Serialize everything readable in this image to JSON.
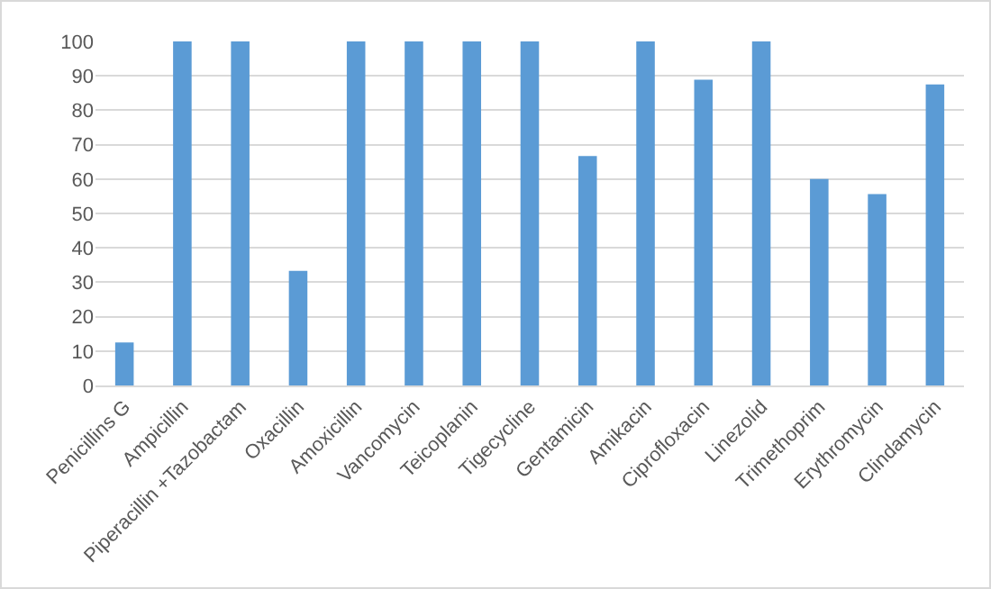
{
  "chart_data": {
    "type": "bar",
    "categories": [
      "Penicillins G",
      "Ampicillin",
      "Piperacillin +Tazobactam",
      "Oxacillin",
      "Amoxicillin",
      "Vancomycin",
      "Teicoplanin",
      "Tigecycline",
      "Gentamicin",
      "Amikacin",
      "Ciprofloxacin",
      "Linezolid",
      "Trimethoprim",
      "Erythromycin",
      "Clindamycin"
    ],
    "values": [
      12.5,
      100,
      100,
      33.3,
      100,
      100,
      100,
      100,
      66.7,
      100,
      88.9,
      100,
      60,
      55.6,
      87.5
    ],
    "color": "#5b9bd5",
    "ylim": [
      0,
      100
    ],
    "yticks": [
      0,
      10,
      20,
      30,
      40,
      50,
      60,
      70,
      80,
      90,
      100
    ],
    "grid": "y",
    "legend": false
  }
}
